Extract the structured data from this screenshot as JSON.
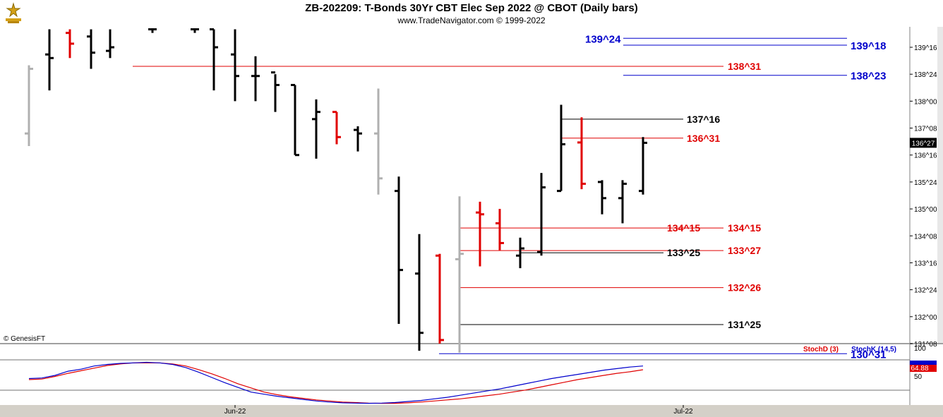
{
  "header": {
    "title": "ZB-202209:  T-Bonds 30Yr CBT Elec Sep 2022 @ CBOT  (Daily bars)",
    "subtitle": "www.TradeNavigator.com © 1999-2022",
    "copyright": "© GenesisFT"
  },
  "chart_data": [
    {
      "type": "bar",
      "subtype": "ohlc",
      "title": "ZB-202209:  T-Bonds 30Yr CBT Elec Sep 2022 @ CBOT  (Daily bars)",
      "y_tick_labels": [
        "139^16",
        "138^24",
        "138^00",
        "137^08",
        "136^16",
        "135^24",
        "135^00",
        "134^08",
        "133^16",
        "132^24",
        "132^00",
        "131^08"
      ],
      "ylim": [
        130.9,
        139.8
      ],
      "x_tick_labels": [
        "Jun-22",
        "Jul-22"
      ],
      "last_price_label": "136^27",
      "colors": {
        "up": "#000000",
        "down": "#e00000",
        "neutral": "#b0b0b0",
        "blue_line": "#0000cc",
        "red_line": "#e00000",
        "black_line": "#000000"
      },
      "bars": [
        {
          "o": 137.1,
          "h": 139.0,
          "l": 136.75,
          "c": 138.9,
          "color": "neutral"
        },
        {
          "o": 139.3,
          "h": 140.0,
          "l": 138.3,
          "c": 139.2,
          "color": "up"
        },
        {
          "o": 139.9,
          "h": 140.0,
          "l": 139.2,
          "c": 139.6,
          "color": "down"
        },
        {
          "o": 139.8,
          "h": 140.0,
          "l": 138.9,
          "c": 139.35,
          "color": "up"
        },
        {
          "o": 139.4,
          "h": 140.0,
          "l": 139.2,
          "c": 139.5,
          "color": "up"
        },
        {
          "o": 140.0,
          "h": 140.0,
          "l": 139.9,
          "c": 140.0,
          "color": "up"
        },
        {
          "o": 140.0,
          "h": 140.0,
          "l": 139.9,
          "c": 140.0,
          "color": "up"
        },
        {
          "o": 140.0,
          "h": 140.0,
          "l": 138.3,
          "c": 139.5,
          "color": "up"
        },
        {
          "o": 139.3,
          "h": 140.0,
          "l": 138.0,
          "c": 138.7,
          "color": "up"
        },
        {
          "o": 138.7,
          "h": 139.25,
          "l": 138.0,
          "c": 138.7,
          "color": "up"
        },
        {
          "o": 138.8,
          "h": 138.75,
          "l": 137.7,
          "c": 138.45,
          "color": "up"
        },
        {
          "o": 138.45,
          "h": 138.45,
          "l": 136.5,
          "c": 136.5,
          "color": "up"
        },
        {
          "o": 137.5,
          "h": 138.05,
          "l": 136.4,
          "c": 137.7,
          "color": "up"
        },
        {
          "o": 137.7,
          "h": 137.7,
          "l": 136.8,
          "c": 137.0,
          "color": "down"
        },
        {
          "o": 137.2,
          "h": 137.3,
          "l": 136.6,
          "c": 137.1,
          "color": "up"
        },
        {
          "o": 137.1,
          "h": 138.35,
          "l": 135.4,
          "c": 135.85,
          "color": "neutral"
        },
        {
          "o": 135.5,
          "h": 135.9,
          "l": 131.8,
          "c": 133.3,
          "color": "up"
        },
        {
          "o": 133.2,
          "h": 134.3,
          "l": 131.05,
          "c": 131.55,
          "color": "up"
        },
        {
          "o": 133.7,
          "h": 133.75,
          "l": 131.25,
          "c": 131.35,
          "color": "down"
        },
        {
          "o": 133.6,
          "h": 135.35,
          "l": 131.0,
          "c": 133.75,
          "color": "neutral"
        },
        {
          "o": 134.9,
          "h": 135.2,
          "l": 133.4,
          "c": 134.85,
          "color": "down"
        },
        {
          "o": 134.6,
          "h": 135.0,
          "l": 133.85,
          "c": 134.05,
          "color": "down"
        },
        {
          "o": 133.7,
          "h": 134.2,
          "l": 133.35,
          "c": 133.9,
          "color": "up"
        },
        {
          "o": 133.8,
          "h": 136.0,
          "l": 133.7,
          "c": 135.6,
          "color": "up"
        },
        {
          "o": 135.5,
          "h": 137.9,
          "l": 135.5,
          "c": 136.8,
          "color": "up"
        },
        {
          "o": 136.85,
          "h": 137.55,
          "l": 135.55,
          "c": 135.7,
          "color": "down"
        },
        {
          "o": 135.75,
          "h": 135.8,
          "l": 134.85,
          "c": 135.3,
          "color": "up"
        },
        {
          "o": 135.3,
          "h": 135.8,
          "l": 134.6,
          "c": 135.7,
          "color": "up"
        },
        {
          "o": 135.5,
          "h": 137.0,
          "l": 135.4,
          "c": 136.84,
          "color": "up"
        }
      ],
      "levels": [
        {
          "label": "139^24",
          "value": 139.75,
          "color": "blue_line",
          "side": "left"
        },
        {
          "label": "139^18",
          "value": 139.56,
          "color": "blue_line",
          "side": "right"
        },
        {
          "label": "138^31",
          "value": 138.97,
          "color": "red_line",
          "side": "right"
        },
        {
          "label": "138^23",
          "value": 138.72,
          "color": "blue_line",
          "side": "right"
        },
        {
          "label": "137^16",
          "value": 137.5,
          "color": "black_line",
          "side": "right"
        },
        {
          "label": "136^31",
          "value": 136.97,
          "color": "red_line",
          "side": "right"
        },
        {
          "label": "134^15",
          "value": 134.47,
          "color": "red_line",
          "side": "right"
        },
        {
          "label": "134^15",
          "value": 134.47,
          "color": "red_line",
          "side": "left"
        },
        {
          "label": "133^27",
          "value": 133.84,
          "color": "red_line",
          "side": "right"
        },
        {
          "label": "133^25",
          "value": 133.78,
          "color": "black_line",
          "side": "left"
        },
        {
          "label": "132^26",
          "value": 132.81,
          "color": "red_line",
          "side": "right"
        },
        {
          "label": "131^25",
          "value": 131.78,
          "color": "black_line",
          "side": "right"
        },
        {
          "label": "130^31",
          "value": 130.97,
          "color": "blue_line",
          "side": "right"
        }
      ]
    },
    {
      "type": "line",
      "title": "Stochastic",
      "legend": [
        "StochD (3)",
        "StochK (14,5)"
      ],
      "y_tick_labels": [
        "100",
        "50"
      ],
      "ylim": [
        0,
        100
      ],
      "last_value_label": "64.88",
      "series": [
        {
          "name": "StochD (3)",
          "color": "#e00000",
          "values": [
            46,
            47,
            52,
            58,
            63,
            68,
            73,
            76,
            78,
            78,
            78,
            76,
            72,
            65,
            57,
            48,
            38,
            30,
            22,
            17,
            13,
            10,
            7,
            5,
            3,
            2,
            1,
            0.5,
            0.5,
            1.5,
            3,
            5,
            7,
            9,
            12,
            15,
            18,
            22,
            26,
            31,
            36,
            41,
            46,
            50,
            54,
            58,
            61,
            64.88
          ]
        },
        {
          "name": "StochK (14,5)",
          "color": "#0000cc",
          "values": [
            48,
            49,
            54,
            62,
            66,
            72,
            75,
            77,
            78,
            79,
            78,
            75,
            69,
            60,
            50,
            40,
            31,
            22,
            18,
            14,
            11,
            8,
            5,
            3,
            1.5,
            1,
            0.5,
            1,
            2,
            4,
            6,
            9,
            12,
            16,
            20,
            24,
            28,
            33,
            38,
            43,
            48,
            52,
            56,
            60,
            64,
            67,
            70,
            72
          ]
        }
      ]
    }
  ]
}
